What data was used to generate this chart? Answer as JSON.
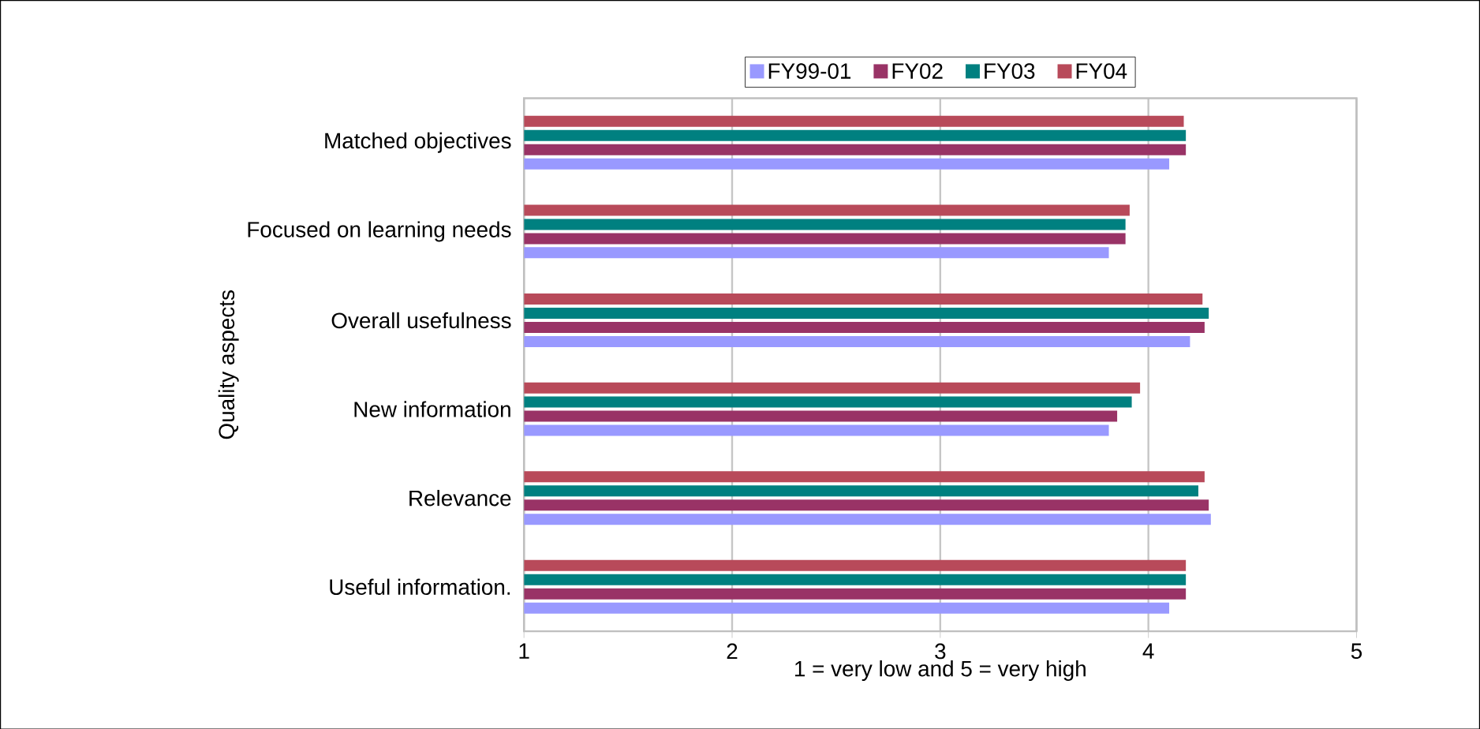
{
  "chart_data": {
    "type": "bar",
    "orientation": "horizontal",
    "xlabel": "1 = very low and 5 = very high",
    "ylabel": "Quality aspects",
    "categories": [
      "Matched objectives",
      "Focused on learning needs",
      "Overall usefulness",
      "New  information",
      "Relevance",
      "Useful information."
    ],
    "series": [
      {
        "name": "FY99-01",
        "color": "#9999ff",
        "values": [
          4.1,
          3.81,
          4.2,
          3.81,
          4.3,
          4.1
        ]
      },
      {
        "name": "FY02",
        "color": "#993366",
        "values": [
          4.18,
          3.89,
          4.27,
          3.85,
          4.29,
          4.18
        ]
      },
      {
        "name": "FY03",
        "color": "#008080",
        "values": [
          4.18,
          3.89,
          4.29,
          3.92,
          4.24,
          4.18
        ]
      },
      {
        "name": "FY04",
        "color": "#b84a5a",
        "values": [
          4.17,
          3.91,
          4.26,
          3.96,
          4.27,
          4.18
        ]
      }
    ],
    "xlim": [
      1,
      5
    ],
    "xticks": [
      1,
      2,
      3,
      4,
      5
    ],
    "grid": "x",
    "legend": "top"
  }
}
